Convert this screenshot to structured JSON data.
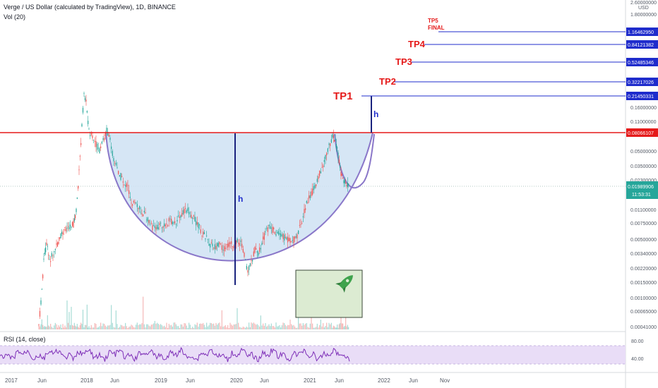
{
  "header": {
    "title": "Verge / US Dollar (calculated by TradingView), 1D, BINANCE",
    "volume_label": "Vol (20)",
    "rsi_label": "RSI (14, close)"
  },
  "colors": {
    "up": "#26a69a",
    "down": "#ef5350",
    "cup_fill": "#cfe2f3",
    "cup_stroke": "#8a77c9",
    "neckline": "#e51a1a",
    "target_line": "#1f2ccc",
    "rsi_line": "#7e2fb8",
    "rsi_band": "#e9ddf7",
    "rocket_box": "#dcebd2",
    "rocket": "#3fa34d",
    "last_price_box": "#26a69a"
  },
  "chart_data": {
    "type": "candlestick",
    "symbol": "Verge / US Dollar",
    "interval": "1D",
    "exchange": "BINANCE",
    "y_scale": "log",
    "currency": "USD",
    "y_axis_ticks": [
      "2.60000000",
      "1.80000000",
      "0.16000000",
      "0.11000000",
      "0.05000000",
      "0.03500000",
      "0.02300000",
      "0.01100000",
      "0.00750000",
      "0.00500000",
      "0.00340000",
      "0.00220000",
      "0.00150000",
      "0.00100000",
      "0.00065000",
      "0.00041000"
    ],
    "x_axis_ticks": [
      "2017",
      "Jun",
      "2018",
      "Jun",
      "2019",
      "Jun",
      "2020",
      "Jun",
      "2021",
      "Jun",
      "2022",
      "Jun",
      "Nov"
    ],
    "price_levels": [
      {
        "label": "TP5 FINAL",
        "value": "1.16462950"
      },
      {
        "label": "TP4",
        "value": "0.84121382"
      },
      {
        "label": "TP3",
        "value": "0.52485346"
      },
      {
        "label": "TP2",
        "value": "0.32217026"
      },
      {
        "label": "TP1",
        "value": "0.21450331"
      },
      {
        "label": "",
        "value": "0.08066107"
      }
    ],
    "last_price": "0.01989906",
    "countdown": "11:53:31",
    "pattern": "cup and handle",
    "height_marker": "h",
    "rsi": {
      "period": 14,
      "levels": [
        "80.00",
        "40.00"
      ]
    }
  }
}
